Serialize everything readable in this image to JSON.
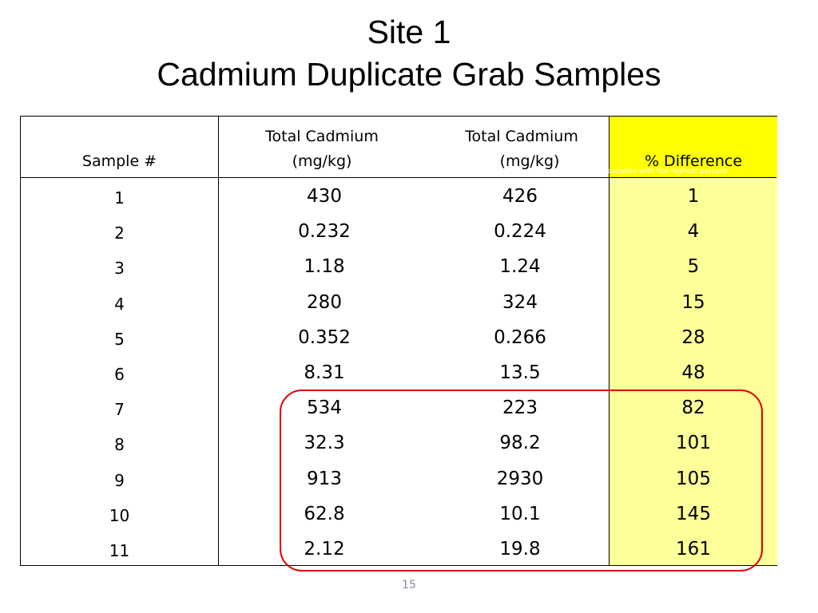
{
  "title": {
    "line1": "Site 1",
    "line2": "Cadmium Duplicate Grab Samples"
  },
  "table": {
    "headers": {
      "sample": "Sample #",
      "col1_line1": "Total Cadmium",
      "col1_line2": "(mg/kg)",
      "col2_line1": "Total Cadmium",
      "col2_line2": "(mg/kg)",
      "diff": "% Difference"
    },
    "rows": [
      {
        "sample": "1",
        "a": "430",
        "b": "426",
        "diff": "1"
      },
      {
        "sample": "2",
        "a": "0.232",
        "b": "0.224",
        "diff": "4"
      },
      {
        "sample": "3",
        "a": "1.18",
        "b": "1.24",
        "diff": "5"
      },
      {
        "sample": "4",
        "a": "280",
        "b": "324",
        "diff": "15"
      },
      {
        "sample": "5",
        "a": "0.352",
        "b": "0.266",
        "diff": "28"
      },
      {
        "sample": "6",
        "a": "8.31",
        "b": "13.5",
        "diff": "48"
      },
      {
        "sample": "7",
        "a": "534",
        "b": "223",
        "diff": "82"
      },
      {
        "sample": "8",
        "a": "32.3",
        "b": "98.2",
        "diff": "101"
      },
      {
        "sample": "9",
        "a": "913",
        "b": "2930",
        "diff": "105"
      },
      {
        "sample": "10",
        "a": "62.8",
        "b": "10.1",
        "diff": "145"
      },
      {
        "sample": "11",
        "a": "2.12",
        "b": "19.8",
        "diff": "161"
      }
    ]
  },
  "overlay_note": "samples with the highest percent",
  "page_number": "15",
  "colors": {
    "highlight_header": "#ffff00",
    "highlight_column": "#ffff99",
    "callout_border": "#e00000"
  }
}
